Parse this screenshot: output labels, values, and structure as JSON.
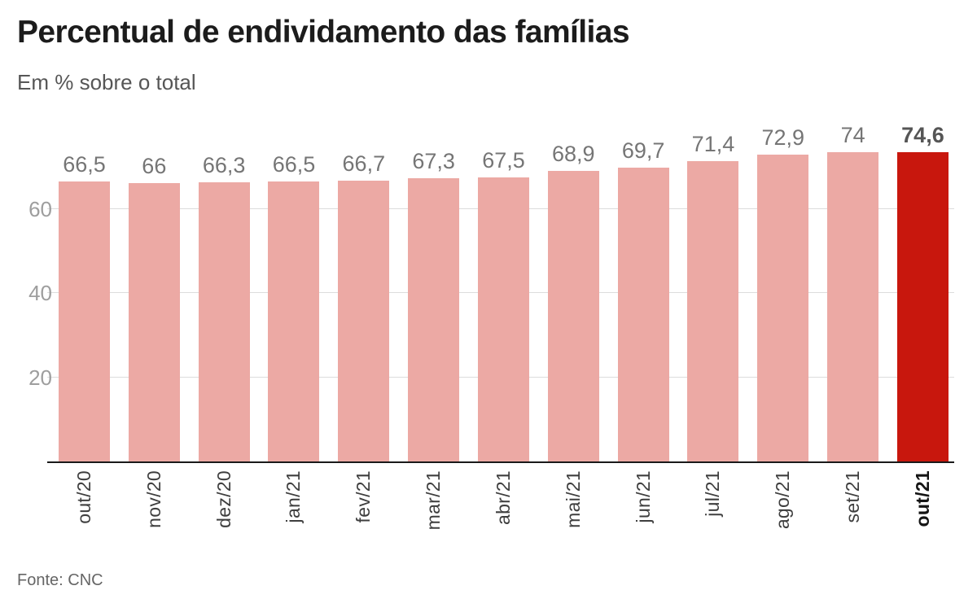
{
  "header": {
    "title": "Percentual de endividamento das famílias",
    "subtitle": "Em % sobre o total"
  },
  "footer": {
    "source": "Fonte: CNC"
  },
  "colors": {
    "bar": "#eca9a4",
    "bar_highlight": "#c8170d",
    "grid": "#dcdcdc",
    "axis": "#1a1a1a"
  },
  "chart_data": {
    "type": "bar",
    "title": "Percentual de endividamento das famílias",
    "subtitle": "Em % sobre o total",
    "categories": [
      "out/20",
      "nov/20",
      "dez/20",
      "jan/21",
      "fev/21",
      "mar/21",
      "abr/21",
      "mai/21",
      "jun/21",
      "jul/21",
      "ago/21",
      "set/21",
      "out/21"
    ],
    "values": [
      66.5,
      66,
      66.3,
      66.5,
      66.7,
      67.3,
      67.5,
      68.9,
      69.7,
      71.4,
      72.9,
      74,
      74.6
    ],
    "value_labels": [
      "66,5",
      "66",
      "66,3",
      "66,5",
      "66,7",
      "67,3",
      "67,5",
      "68,9",
      "69,7",
      "71,4",
      "72,9",
      "74",
      "74,6"
    ],
    "highlight_index": 12,
    "xlabel": "",
    "ylabel": "",
    "ylim": [
      0,
      80
    ],
    "yticks": [
      20,
      40,
      60
    ],
    "grid": true,
    "legend": false,
    "bar_color": "#eca9a4",
    "highlight_color": "#c8170d",
    "source": "Fonte: CNC"
  }
}
